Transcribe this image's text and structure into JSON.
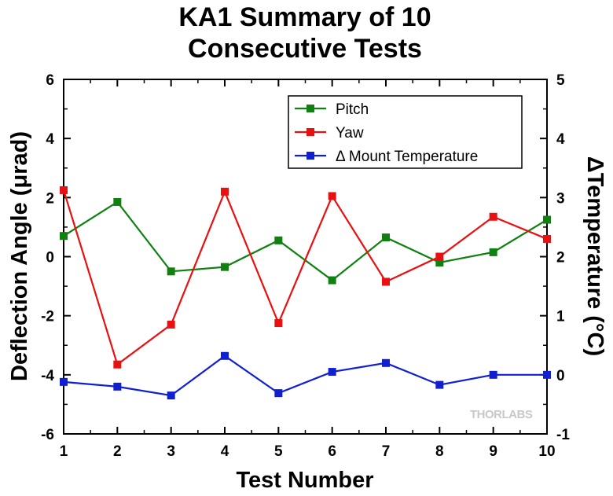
{
  "chart_data": {
    "type": "line",
    "title_lines": [
      "KA1 Summary of 10",
      "Consecutive Tests"
    ],
    "xlabel": "Test Number",
    "ylabel_left": "Deflection Angle (μrad)",
    "ylabel_right": "ΔTemperature (°C)",
    "xlim": [
      1,
      10
    ],
    "ylim_left": [
      -6,
      6
    ],
    "ylim_right": [
      -1,
      5
    ],
    "x": [
      1,
      2,
      3,
      4,
      5,
      6,
      7,
      8,
      9,
      10
    ],
    "x_ticks": [
      "1",
      "2",
      "3",
      "4",
      "5",
      "6",
      "7",
      "8",
      "9",
      "10"
    ],
    "y_left_ticks": [
      "-6",
      "-4",
      "-2",
      "0",
      "2",
      "4",
      "6"
    ],
    "y_right_ticks": [
      "-1",
      "0",
      "1",
      "2",
      "3",
      "4",
      "5"
    ],
    "grid": false,
    "legend_position": "top-right",
    "series": [
      {
        "name": "Pitch",
        "axis": "left",
        "color": "#108010",
        "values": [
          0.7,
          1.85,
          -0.5,
          -0.35,
          0.55,
          -0.8,
          0.65,
          -0.2,
          0.15,
          1.25
        ]
      },
      {
        "name": "Yaw",
        "axis": "left",
        "color": "#e81010",
        "values": [
          2.25,
          -3.65,
          -2.3,
          2.2,
          -2.25,
          2.05,
          -0.85,
          0.0,
          1.35,
          0.6
        ]
      },
      {
        "name": "Δ Mount Temperature",
        "axis": "right",
        "color": "#1020d0",
        "values": [
          -0.12,
          -0.2,
          -0.35,
          0.32,
          -0.31,
          0.05,
          0.2,
          -0.17,
          0.0,
          0.0
        ]
      }
    ],
    "watermark": "THORLABS"
  }
}
